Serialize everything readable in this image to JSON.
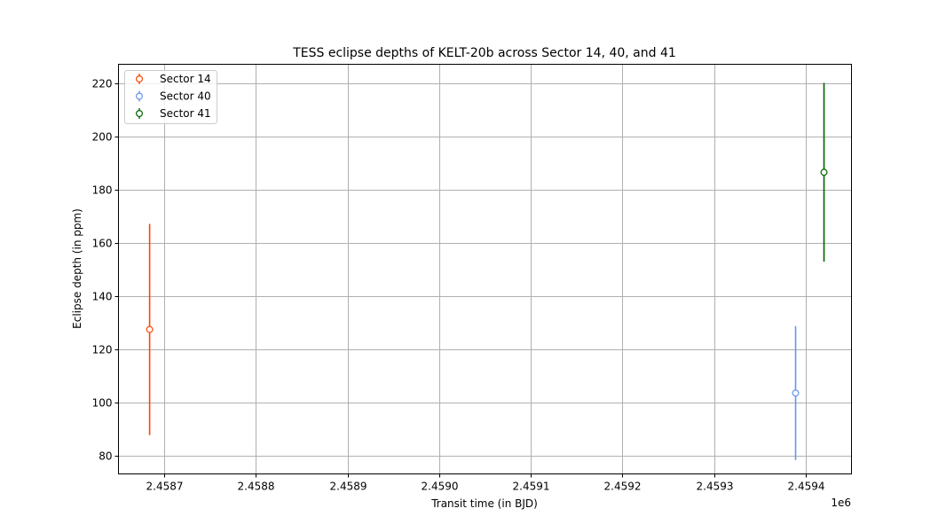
{
  "chart_data": {
    "type": "scatter",
    "title": "TESS eclipse depths of KELT-20b across Sector 14, 40, and 41",
    "xlabel": "Transit time (in BJD)",
    "ylabel": "Eclipse depth (in ppm)",
    "x_offset_label": "1e6",
    "x_scale": 1000000,
    "xlim": [
      2.45865,
      2.45945
    ],
    "ylim": [
      73,
      227
    ],
    "x_ticks": [
      2.4587,
      2.4588,
      2.4589,
      2.459,
      2.4591,
      2.4592,
      2.4593,
      2.4594
    ],
    "x_tick_labels": [
      "2.4587",
      "2.4588",
      "2.4589",
      "2.4590",
      "2.4591",
      "2.4592",
      "2.4593",
      "2.4594"
    ],
    "y_ticks": [
      80,
      100,
      120,
      140,
      160,
      180,
      200,
      220
    ],
    "y_tick_labels": [
      "80",
      "100",
      "120",
      "140",
      "160",
      "180",
      "200",
      "220"
    ],
    "grid": true,
    "legend": "upper-left",
    "series": [
      {
        "name": "Sector 14",
        "color": "#ff4500",
        "x": [
          2.458684
        ],
        "y": [
          127.3
        ],
        "yerr": [
          39.7
        ]
      },
      {
        "name": "Sector 40",
        "color": "#6495ed",
        "x": [
          2.459389
        ],
        "y": [
          103.4
        ],
        "yerr": [
          25.2
        ]
      },
      {
        "name": "Sector 41",
        "color": "#006400",
        "x": [
          2.45942
        ],
        "y": [
          186.4
        ],
        "yerr": [
          33.6
        ]
      }
    ]
  }
}
